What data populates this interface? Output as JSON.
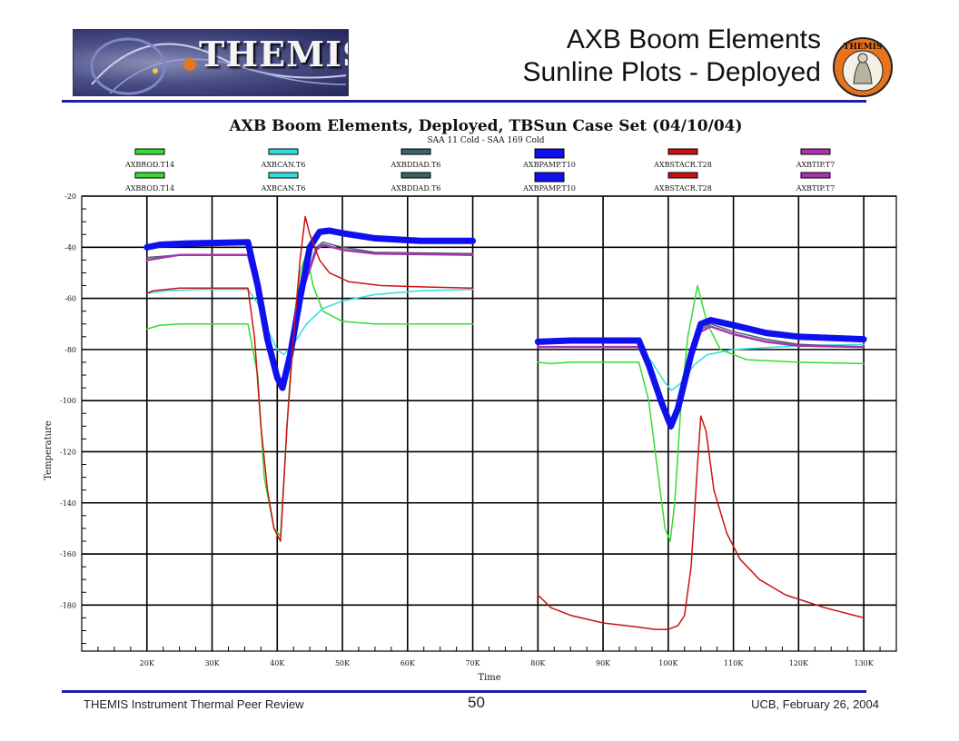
{
  "slide": {
    "title_line1": "AXB Boom Elements",
    "title_line2": "Sunline Plots - Deployed",
    "banner_text": "THEMIS",
    "badge_text": "THEMIS",
    "footer_left": "THEMIS Instrument Thermal Peer Review",
    "page_number": "50",
    "footer_right": "UCB, February 26, 2004"
  },
  "colors": {
    "rule": "#1f1fa0",
    "AXBROD": "#33dd33",
    "AXBCAN": "#33dddd",
    "AXBDDAD": "#336666",
    "AXBPAMP": "#1010ee",
    "AXBSTACR": "#cc1111",
    "AXBTIP": "#aa33aa"
  },
  "chart_data": {
    "type": "line",
    "title": "AXB Boom Elements, Deployed, TBSun Case Set (04/10/04)",
    "subtitle": "SAA 11 Cold - SAA 169 Cold",
    "xlabel": "Time",
    "ylabel": "Temperature",
    "xlim": [
      10000,
      135000
    ],
    "ylim": [
      -198,
      -20
    ],
    "xticks": [
      20000,
      30000,
      40000,
      50000,
      60000,
      70000,
      80000,
      90000,
      100000,
      110000,
      120000,
      130000
    ],
    "xtick_labels": [
      "20K",
      "30K",
      "40K",
      "50K",
      "60K",
      "70K",
      "80K",
      "90K",
      "100K",
      "110K",
      "120K",
      "130K"
    ],
    "yticks": [
      -20,
      -40,
      -60,
      -80,
      -100,
      -120,
      -140,
      -160,
      -180
    ],
    "ytick_labels": [
      "-20",
      "-40",
      "-60",
      "-80",
      "-100",
      "-120",
      "-140",
      "-160",
      "-180"
    ],
    "grid": true,
    "legend": {
      "placement": "top",
      "rows": [
        [
          "AXBROD.T14",
          "AXBCAN.T6",
          "AXBDDAD.T6",
          "AXBPAMP.T10",
          "AXBSTACR.T28",
          "AXBTIP.T7"
        ],
        [
          "AXBROD.T14",
          "AXBCAN.T6",
          "AXBDDAD.T6",
          "AXBPAMP.T10",
          "AXBSTACR.T28",
          "AXBTIP.T7"
        ]
      ]
    },
    "series": [
      {
        "name": "AXBROD.T14",
        "color": "#33dd33",
        "width": 1.5,
        "segments": [
          [
            [
              20000,
              -72
            ],
            [
              22000,
              -70.5
            ],
            [
              25000,
              -70
            ],
            [
              35500,
              -70
            ],
            [
              37000,
              -90
            ],
            [
              38000,
              -130
            ],
            [
              39500,
              -150
            ],
            [
              40500,
              -153
            ],
            [
              41500,
              -110
            ],
            [
              42500,
              -70
            ],
            [
              43500,
              -50
            ],
            [
              44500,
              -42
            ],
            [
              45500,
              -55
            ],
            [
              47000,
              -65
            ],
            [
              50000,
              -69
            ],
            [
              55000,
              -70
            ],
            [
              70000,
              -70
            ]
          ],
          [
            [
              80000,
              -85
            ],
            [
              82000,
              -85.5
            ],
            [
              85000,
              -85
            ],
            [
              95500,
              -85
            ],
            [
              97000,
              -100
            ],
            [
              98500,
              -130
            ],
            [
              99500,
              -150
            ],
            [
              100300,
              -155
            ],
            [
              101000,
              -140
            ],
            [
              102000,
              -100
            ],
            [
              103000,
              -75
            ],
            [
              104500,
              -55
            ],
            [
              106000,
              -70
            ],
            [
              108000,
              -80
            ],
            [
              112000,
              -84
            ],
            [
              120000,
              -85
            ],
            [
              130000,
              -85.5
            ]
          ]
        ]
      },
      {
        "name": "AXBCAN.T6",
        "color": "#33dddd",
        "width": 1.5,
        "segments": [
          [
            [
              20000,
              -58
            ],
            [
              23000,
              -57
            ],
            [
              28000,
              -56.5
            ],
            [
              35500,
              -56.5
            ],
            [
              37000,
              -62
            ],
            [
              38500,
              -72
            ],
            [
              40000,
              -80
            ],
            [
              41000,
              -82
            ],
            [
              42500,
              -78
            ],
            [
              44500,
              -70
            ],
            [
              47000,
              -64
            ],
            [
              50000,
              -61
            ],
            [
              55000,
              -58.5
            ],
            [
              62000,
              -57
            ],
            [
              70000,
              -56.5
            ]
          ],
          [
            [
              80000,
              -79
            ],
            [
              85000,
              -79
            ],
            [
              95500,
              -79
            ],
            [
              97500,
              -85
            ],
            [
              99500,
              -93
            ],
            [
              100500,
              -96
            ],
            [
              102000,
              -93
            ],
            [
              104000,
              -86
            ],
            [
              106000,
              -82
            ],
            [
              110000,
              -80
            ],
            [
              120000,
              -78.5
            ],
            [
              130000,
              -78
            ]
          ]
        ]
      },
      {
        "name": "AXBDDAD.T6",
        "color": "#336666",
        "width": 1.5,
        "segments": [
          [
            [
              20000,
              -44
            ],
            [
              25000,
              -43
            ],
            [
              35500,
              -43
            ],
            [
              37000,
              -58
            ],
            [
              38500,
              -78
            ],
            [
              40000,
              -92
            ],
            [
              40800,
              -95
            ],
            [
              42000,
              -80
            ],
            [
              44000,
              -55
            ],
            [
              46000,
              -40
            ],
            [
              47000,
              -38
            ],
            [
              50000,
              -40
            ],
            [
              55000,
              -42
            ],
            [
              70000,
              -42.5
            ]
          ],
          [
            [
              80000,
              -79
            ],
            [
              85000,
              -79
            ],
            [
              95500,
              -79
            ],
            [
              97000,
              -88
            ],
            [
              99000,
              -102
            ],
            [
              100400,
              -110
            ],
            [
              101500,
              -102
            ],
            [
              103500,
              -82
            ],
            [
              105000,
              -72
            ],
            [
              106500,
              -70
            ],
            [
              110000,
              -73
            ],
            [
              115000,
              -76
            ],
            [
              120000,
              -78
            ],
            [
              130000,
              -79
            ]
          ]
        ]
      },
      {
        "name": "AXBTIP.T7",
        "color": "#aa33aa",
        "width": 2.5,
        "segments": [
          [
            [
              20000,
              -45
            ],
            [
              25000,
              -43
            ],
            [
              35500,
              -43
            ],
            [
              37000,
              -58
            ],
            [
              38500,
              -78
            ],
            [
              40000,
              -92
            ],
            [
              40800,
              -95.5
            ],
            [
              42000,
              -80
            ],
            [
              44000,
              -56
            ],
            [
              46000,
              -41
            ],
            [
              47000,
              -39
            ],
            [
              50000,
              -41
            ],
            [
              55000,
              -42.5
            ],
            [
              70000,
              -43
            ]
          ],
          [
            [
              80000,
              -79
            ],
            [
              85000,
              -79
            ],
            [
              95500,
              -79
            ],
            [
              97000,
              -88
            ],
            [
              99000,
              -102
            ],
            [
              100400,
              -111
            ],
            [
              101500,
              -103
            ],
            [
              103500,
              -83
            ],
            [
              105000,
              -73
            ],
            [
              106500,
              -71
            ],
            [
              110000,
              -74
            ],
            [
              115000,
              -77
            ],
            [
              120000,
              -78.5
            ],
            [
              130000,
              -79
            ]
          ]
        ]
      },
      {
        "name": "AXBPAMP.T10",
        "color": "#1010ee",
        "width": 7,
        "segments": [
          [
            [
              20000,
              -40
            ],
            [
              22000,
              -39
            ],
            [
              26000,
              -38.5
            ],
            [
              35500,
              -38
            ],
            [
              37000,
              -55
            ],
            [
              38500,
              -76
            ],
            [
              40000,
              -91
            ],
            [
              40800,
              -95
            ],
            [
              42000,
              -82
            ],
            [
              43500,
              -60
            ],
            [
              45000,
              -40
            ],
            [
              46500,
              -34
            ],
            [
              48000,
              -33.5
            ],
            [
              50000,
              -34.5
            ],
            [
              55000,
              -36.5
            ],
            [
              62000,
              -37.5
            ],
            [
              70000,
              -37.5
            ]
          ],
          [
            [
              80000,
              -77
            ],
            [
              85000,
              -76.5
            ],
            [
              95500,
              -76.5
            ],
            [
              97000,
              -86
            ],
            [
              99000,
              -101
            ],
            [
              100400,
              -110
            ],
            [
              101500,
              -103
            ],
            [
              103500,
              -82
            ],
            [
              105000,
              -70
            ],
            [
              106500,
              -68.5
            ],
            [
              110000,
              -70.5
            ],
            [
              115000,
              -73.5
            ],
            [
              120000,
              -75
            ],
            [
              130000,
              -76
            ]
          ]
        ]
      },
      {
        "name": "AXBSTACR.T28",
        "color": "#cc1111",
        "width": 1.5,
        "segments": [
          [
            [
              20000,
              -58
            ],
            [
              21000,
              -57
            ],
            [
              25000,
              -56
            ],
            [
              35500,
              -56
            ],
            [
              36500,
              -75
            ],
            [
              37500,
              -110
            ],
            [
              38500,
              -135
            ],
            [
              39500,
              -150
            ],
            [
              40500,
              -155
            ],
            [
              41500,
              -110
            ],
            [
              42500,
              -75
            ],
            [
              43500,
              -45
            ],
            [
              44300,
              -28
            ],
            [
              45000,
              -35
            ],
            [
              46500,
              -45
            ],
            [
              48000,
              -50
            ],
            [
              51000,
              -53.5
            ],
            [
              56000,
              -55
            ],
            [
              62000,
              -55.5
            ],
            [
              70000,
              -56
            ]
          ],
          [
            [
              80000,
              -176
            ],
            [
              82000,
              -181
            ],
            [
              85000,
              -184
            ],
            [
              90000,
              -187
            ],
            [
              95000,
              -188.5
            ],
            [
              98000,
              -189.5
            ],
            [
              100000,
              -189.5
            ],
            [
              101500,
              -188
            ],
            [
              102500,
              -184
            ],
            [
              103500,
              -165
            ],
            [
              104500,
              -125
            ],
            [
              105000,
              -106
            ],
            [
              105800,
              -112
            ],
            [
              107000,
              -135
            ],
            [
              109000,
              -152
            ],
            [
              111000,
              -162
            ],
            [
              114000,
              -170
            ],
            [
              118000,
              -176
            ],
            [
              124000,
              -181
            ],
            [
              130000,
              -185
            ]
          ]
        ]
      }
    ]
  }
}
